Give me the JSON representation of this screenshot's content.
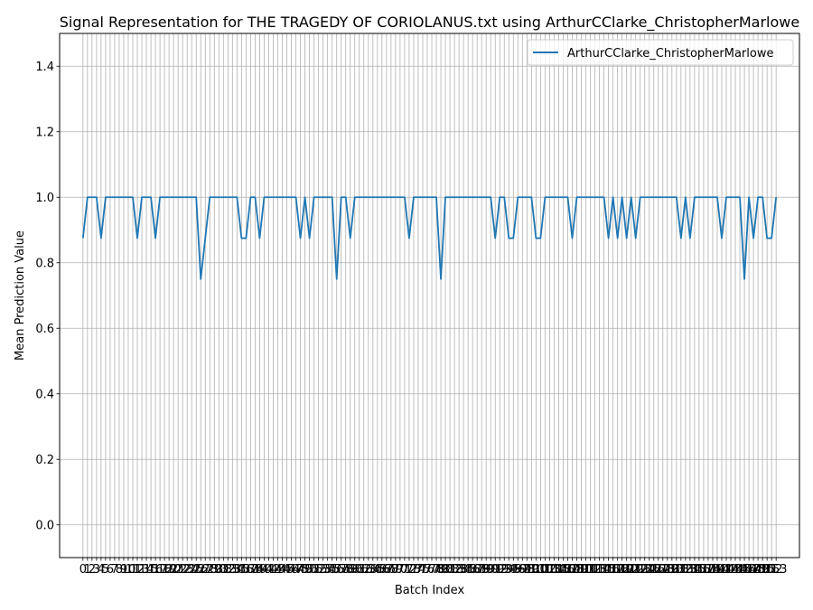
{
  "chart_data": {
    "type": "line",
    "title": "Signal Representation for THE TRAGEDY OF CORIOLANUS.txt using ArthurCClarke_ChristopherMarlowe",
    "xlabel": "Batch Index",
    "ylabel": "Mean Prediction Value",
    "xlim": [
      -5.15,
      158.15
    ],
    "ylim": [
      -0.1,
      1.5
    ],
    "y_ticks": [
      0.0,
      0.2,
      0.4,
      0.6,
      0.8,
      1.0,
      1.2,
      1.4
    ],
    "x_ticks": "0-153",
    "grid": true,
    "legend_position": "upper right",
    "series": [
      {
        "name": "ArthurCClarke_ChristopherMarlowe",
        "color": "#1f77b4",
        "x_start": 0,
        "values": [
          0.875,
          1.0,
          1.0,
          1.0,
          0.875,
          1.0,
          1.0,
          1.0,
          1.0,
          1.0,
          1.0,
          1.0,
          0.875,
          1.0,
          1.0,
          1.0,
          0.875,
          1.0,
          1.0,
          1.0,
          1.0,
          1.0,
          1.0,
          1.0,
          1.0,
          1.0,
          0.75,
          0.875,
          1.0,
          1.0,
          1.0,
          1.0,
          1.0,
          1.0,
          1.0,
          0.875,
          0.875,
          1.0,
          1.0,
          0.875,
          1.0,
          1.0,
          1.0,
          1.0,
          1.0,
          1.0,
          1.0,
          1.0,
          0.875,
          1.0,
          0.875,
          1.0,
          1.0,
          1.0,
          1.0,
          1.0,
          0.75,
          1.0,
          1.0,
          0.875,
          1.0,
          1.0,
          1.0,
          1.0,
          1.0,
          1.0,
          1.0,
          1.0,
          1.0,
          1.0,
          1.0,
          1.0,
          0.875,
          1.0,
          1.0,
          1.0,
          1.0,
          1.0,
          1.0,
          0.75,
          1.0,
          1.0,
          1.0,
          1.0,
          1.0,
          1.0,
          1.0,
          1.0,
          1.0,
          1.0,
          1.0,
          0.875,
          1.0,
          1.0,
          0.875,
          0.875,
          1.0,
          1.0,
          1.0,
          1.0,
          0.875,
          0.875,
          1.0,
          1.0,
          1.0,
          1.0,
          1.0,
          1.0,
          0.875,
          1.0,
          1.0,
          1.0,
          1.0,
          1.0,
          1.0,
          1.0,
          0.875,
          1.0,
          0.875,
          1.0,
          0.875,
          1.0,
          0.875,
          1.0,
          1.0,
          1.0,
          1.0,
          1.0,
          1.0,
          1.0,
          1.0,
          1.0,
          0.875,
          1.0,
          0.875,
          1.0,
          1.0,
          1.0,
          1.0,
          1.0,
          1.0,
          0.875,
          1.0,
          1.0,
          1.0,
          1.0,
          0.75,
          1.0,
          0.875,
          1.0,
          1.0,
          0.875,
          0.875,
          1.0
        ]
      }
    ]
  }
}
